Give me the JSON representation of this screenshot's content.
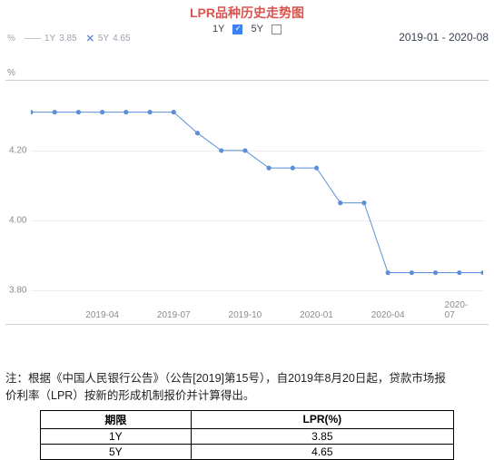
{
  "title": "LPR品种历史走势图",
  "controls": {
    "opt1_label": "1Y",
    "opt1_checked": true,
    "opt2_label": "5Y",
    "opt2_checked": false
  },
  "legend": {
    "y_unit": "%",
    "series1_label": "1Y",
    "series1_value": "3.85",
    "series2_label": "5Y",
    "series2_value": "4.65"
  },
  "date_range": "2019-01 - 2020-08",
  "chart": {
    "type": "line",
    "line_color": "#5b8fd8",
    "marker_color": "#5b8fd8",
    "marker_radius": 2.6,
    "line_width": 1,
    "grid_color": "#ececec",
    "axis_color": "#d0d0d0",
    "label_color": "#8a8a8a",
    "background_color": "#ffffff",
    "ylim": [
      3.75,
      4.4
    ],
    "yticks": [
      3.8,
      4.0,
      4.2
    ],
    "x_count": 20,
    "xticks": [
      {
        "i": 3,
        "label": "2019-04"
      },
      {
        "i": 6,
        "label": "2019-07"
      },
      {
        "i": 9,
        "label": "2019-10"
      },
      {
        "i": 12,
        "label": "2020-01"
      },
      {
        "i": 15,
        "label": "2020-04"
      },
      {
        "i": 18,
        "label": "2020-07"
      }
    ],
    "values": [
      4.31,
      4.31,
      4.31,
      4.31,
      4.31,
      4.31,
      4.31,
      4.25,
      4.2,
      4.2,
      4.15,
      4.15,
      4.15,
      4.05,
      4.05,
      3.85,
      3.85,
      3.85,
      3.85,
      3.85
    ]
  },
  "note_text": "注：根据《中国人民银行公告》（公告[2019]第15号），自2019年8月20日起，贷款市场报价利率（LPR）按新的形成机制报价并计算得出。",
  "table": {
    "headers": [
      "期限",
      "LPR(%)"
    ],
    "rows": [
      [
        "1Y",
        "3.85"
      ],
      [
        "5Y",
        "4.65"
      ]
    ]
  }
}
